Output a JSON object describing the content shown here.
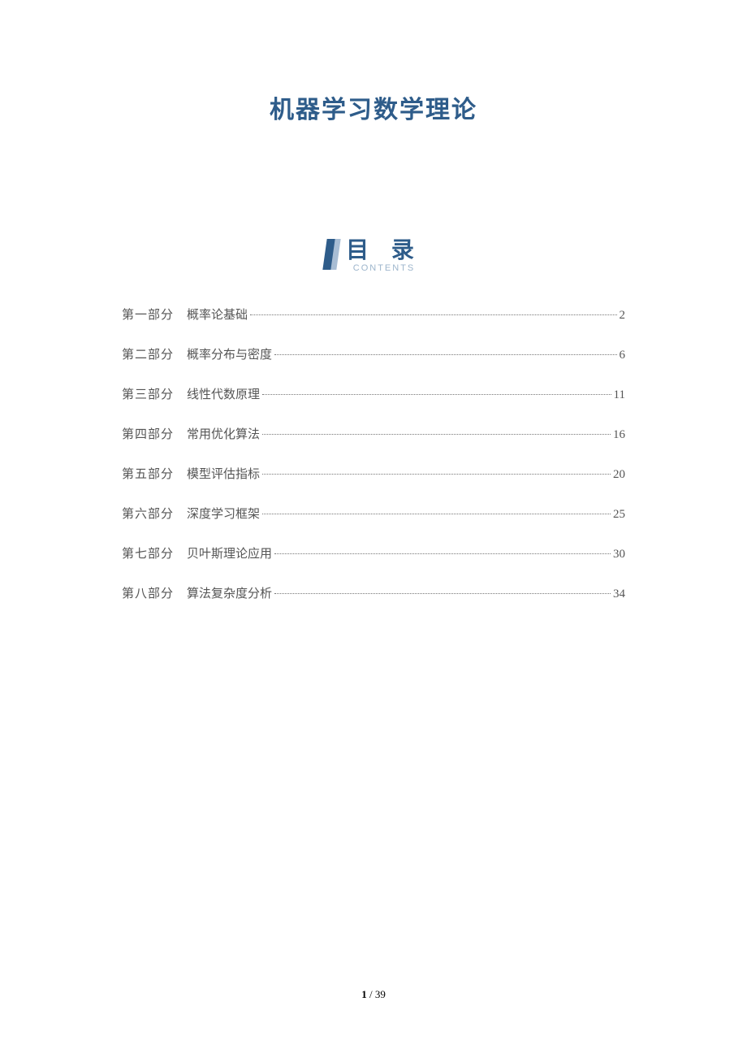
{
  "title": "机器学习数学理论",
  "toc_header": {
    "cn": "目 录",
    "en": "CONTENTS"
  },
  "colors": {
    "title_color": "#2e5c8a",
    "toc_text": "#555555",
    "subtitle_grey": "#9db5cc",
    "dots": "#777777",
    "background": "#ffffff"
  },
  "toc": [
    {
      "part": "第一部分",
      "chapter": "概率论基础",
      "page": "2"
    },
    {
      "part": "第二部分",
      "chapter": "概率分布与密度",
      "page": "6"
    },
    {
      "part": "第三部分",
      "chapter": "线性代数原理",
      "page": "11"
    },
    {
      "part": "第四部分",
      "chapter": "常用优化算法",
      "page": "16"
    },
    {
      "part": "第五部分",
      "chapter": "模型评估指标",
      "page": "20"
    },
    {
      "part": "第六部分",
      "chapter": "深度学习框架",
      "page": "25"
    },
    {
      "part": "第七部分",
      "chapter": "贝叶斯理论应用",
      "page": "30"
    },
    {
      "part": "第八部分",
      "chapter": "算法复杂度分析",
      "page": "34"
    }
  ],
  "footer": {
    "current": "1",
    "sep": " / ",
    "total": "39"
  }
}
